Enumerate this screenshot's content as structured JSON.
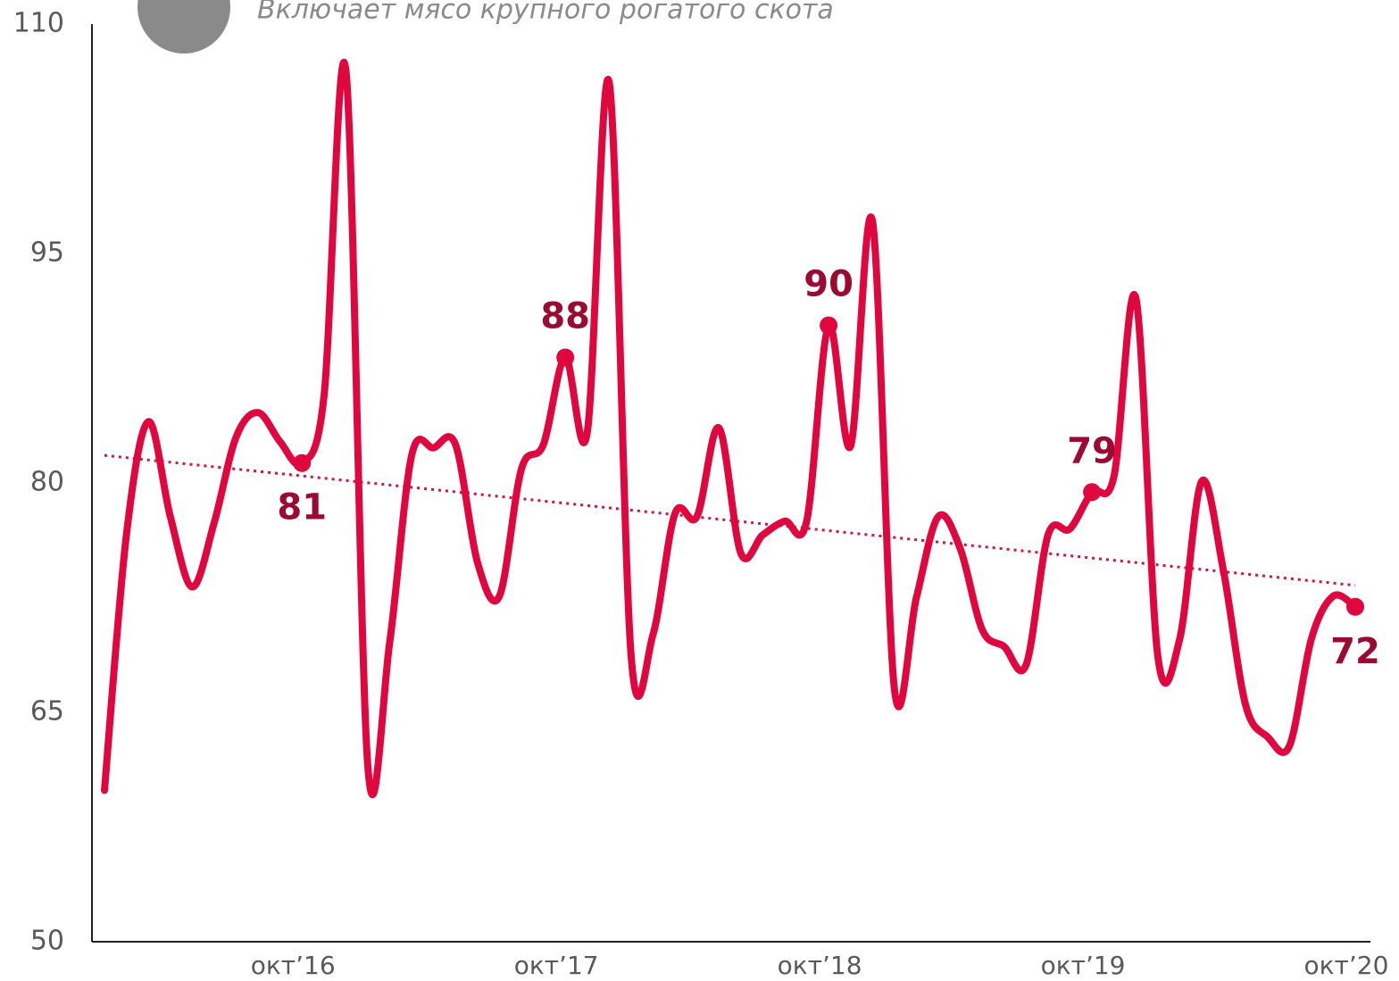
{
  "chart_data": {
    "type": "line",
    "subtitle": "Включает мясо крупного рогатого скота",
    "categories": [
      null,
      null,
      null,
      null,
      null,
      null,
      null,
      null,
      null,
      "окт’16",
      null,
      null,
      null,
      null,
      null,
      null,
      null,
      null,
      null,
      null,
      null,
      "окт’17",
      null,
      null,
      null,
      null,
      null,
      null,
      null,
      null,
      null,
      null,
      null,
      "окт’18",
      null,
      null,
      null,
      null,
      null,
      null,
      null,
      null,
      null,
      null,
      null,
      "окт’19",
      null,
      null,
      null,
      null,
      null,
      null,
      null,
      null,
      null,
      null,
      null,
      "окт’20"
    ],
    "series": [
      {
        "color": "#e0063e",
        "values": [
          59.9,
          76.6,
          84.0,
          77.8,
          73.2,
          77.4,
          83.0,
          84.6,
          82.7,
          81.3,
          85.6,
          107.0,
          61.5,
          69.6,
          81.8,
          82.3,
          82.5,
          74.8,
          72.6,
          80.9,
          82.5,
          88.2,
          83.3,
          106.2,
          68.7,
          70.1,
          78.0,
          77.8,
          83.6,
          75.4,
          76.6,
          77.5,
          77.5,
          90.3,
          82.4,
          97.1,
          66.5,
          72.5,
          77.8,
          75.7,
          70.4,
          69.3,
          68.1,
          76.6,
          77.0,
          79.4,
          80.4,
          92.1,
          68.7,
          69.8,
          80.1,
          74.2,
          65.5,
          63.4,
          62.8,
          69.8,
          72.6,
          71.9
        ],
        "value_labels": [
          null,
          null,
          null,
          null,
          null,
          null,
          null,
          null,
          null,
          "81",
          null,
          null,
          null,
          null,
          null,
          null,
          null,
          null,
          null,
          null,
          null,
          "88",
          null,
          null,
          null,
          null,
          null,
          null,
          null,
          null,
          null,
          null,
          null,
          "90",
          null,
          null,
          null,
          null,
          null,
          null,
          null,
          null,
          null,
          null,
          null,
          "79",
          null,
          null,
          null,
          null,
          null,
          null,
          null,
          null,
          null,
          null,
          null,
          "72"
        ]
      }
    ],
    "trend": {
      "color": "#d4143f",
      "values": [
        81.8,
        73.3
      ]
    },
    "label_color": "#9b0a30",
    "ylim": [
      50,
      110
    ],
    "yticks": [
      50,
      65,
      80,
      95,
      110
    ]
  }
}
